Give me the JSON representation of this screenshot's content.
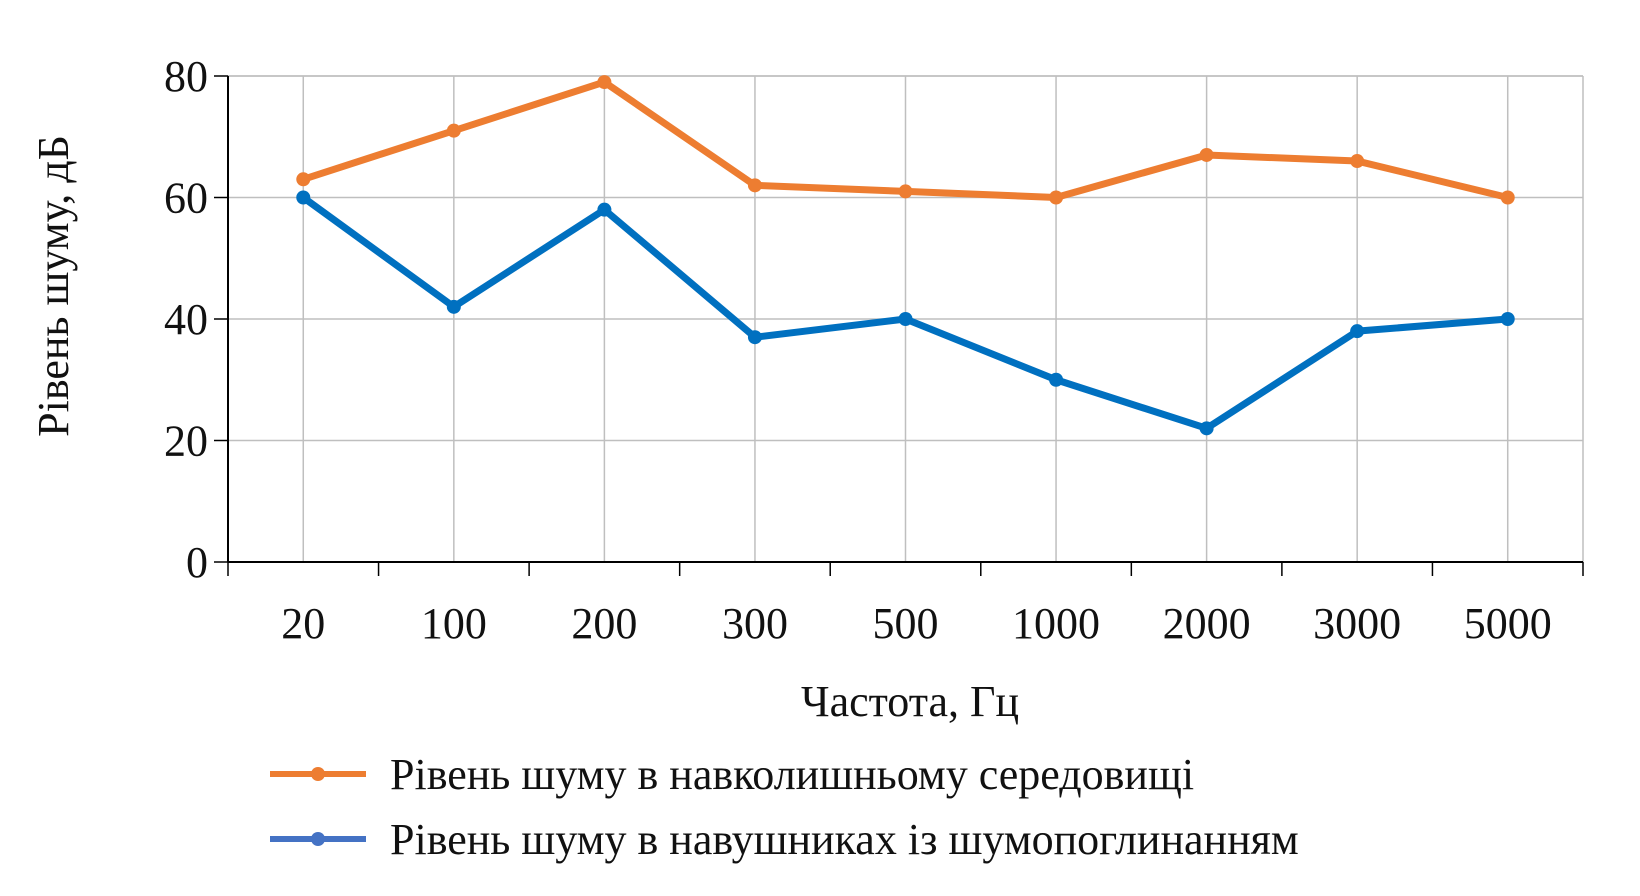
{
  "chart_data": {
    "type": "line",
    "categories": [
      "20",
      "100",
      "200",
      "300",
      "500",
      "1000",
      "2000",
      "3000",
      "5000"
    ],
    "series": [
      {
        "name": "Рівень шуму в навколишньому середовищі",
        "values": [
          63,
          71,
          79,
          62,
          61,
          60,
          67,
          66,
          60
        ],
        "color": "#ED7D31"
      },
      {
        "name": "Рівень шуму в навушниках із шумопоглинанням",
        "values": [
          60,
          42,
          58,
          37,
          40,
          30,
          22,
          38,
          40
        ],
        "color": "#0070C0"
      }
    ],
    "xlabel": "Частота, Гц",
    "ylabel": "Рівень шуму, дБ",
    "ylim": [
      0,
      80
    ],
    "yticks": [
      "0",
      "20",
      "40",
      "60",
      "80"
    ],
    "grid": true,
    "legend_position": "bottom"
  },
  "colors": {
    "grid": "#BFBFBF",
    "axis": "#000000",
    "legend_marker_2": "#4472C4"
  }
}
